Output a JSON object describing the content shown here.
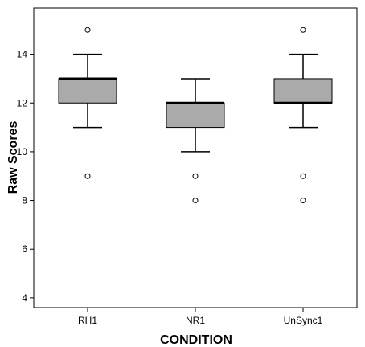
{
  "chart_data": {
    "type": "boxplot",
    "title": "",
    "xlabel": "CONDITION",
    "ylabel": "Raw Scores",
    "ylim": [
      3.6,
      15.9
    ],
    "yticks": [
      4,
      6,
      8,
      10,
      12,
      14
    ],
    "grid": false,
    "legend": "none",
    "colors": {
      "box_fill": "#aaaaaa",
      "stroke": "#000000",
      "outlier_fill": "#ffffff"
    },
    "categories": [
      "RH1",
      "NR1",
      "UnSync1"
    ],
    "boxes": [
      {
        "category": "RH1",
        "whisker_low": 11,
        "q1": 12,
        "median": 13,
        "q3": 13,
        "whisker_high": 14,
        "outliers": [
          15,
          9
        ]
      },
      {
        "category": "NR1",
        "whisker_low": 10,
        "q1": 11,
        "median": 12,
        "q3": 12,
        "whisker_high": 13,
        "outliers": [
          9,
          8
        ]
      },
      {
        "category": "UnSync1",
        "whisker_low": 11,
        "q1": 12,
        "median": 12,
        "q3": 13,
        "whisker_high": 14,
        "outliers": [
          15,
          9,
          8
        ]
      }
    ]
  }
}
